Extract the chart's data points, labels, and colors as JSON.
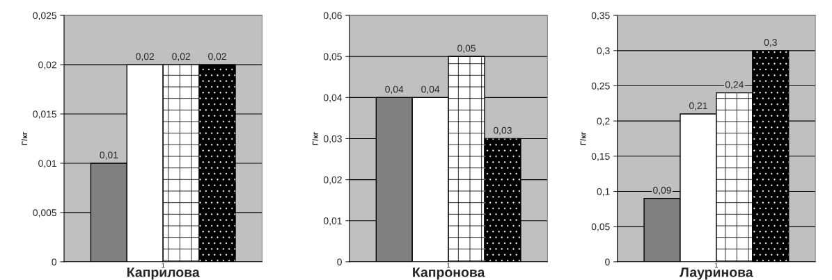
{
  "chart_data": [
    {
      "type": "bar",
      "categories": [
        "1"
      ],
      "xlabel": "Каприлова",
      "ylabel": "Г/кг",
      "ylim": [
        0,
        0.025
      ],
      "yticks": [
        {
          "value": 0,
          "label": "0"
        },
        {
          "value": 0.005,
          "label": "0,005"
        },
        {
          "value": 0.01,
          "label": "0,01"
        },
        {
          "value": 0.015,
          "label": "0,015"
        },
        {
          "value": 0.02,
          "label": "0,02"
        },
        {
          "value": 0.025,
          "label": "0,025"
        }
      ],
      "grid": "y",
      "series": [
        {
          "color": "#808080",
          "values": [
            0.01
          ],
          "value_labels": [
            "0,01"
          ]
        },
        {
          "color": "#ffffff",
          "values": [
            0.02
          ],
          "value_labels": [
            "0,02"
          ]
        },
        {
          "color": "#ffffff",
          "values": [
            0.02
          ],
          "value_labels": [
            "0,02"
          ]
        },
        {
          "color": "#000000",
          "values": [
            0.02
          ],
          "value_labels": [
            "0,02"
          ]
        }
      ]
    },
    {
      "type": "bar",
      "categories": [
        "1"
      ],
      "xlabel": "Капронова",
      "ylabel": "Г/кг",
      "ylim": [
        0,
        0.06
      ],
      "yticks": [
        {
          "value": 0,
          "label": "0"
        },
        {
          "value": 0.01,
          "label": "0,01"
        },
        {
          "value": 0.02,
          "label": "0,02"
        },
        {
          "value": 0.03,
          "label": "0,03"
        },
        {
          "value": 0.04,
          "label": "0,04"
        },
        {
          "value": 0.05,
          "label": "0,05"
        },
        {
          "value": 0.06,
          "label": "0,06"
        }
      ],
      "grid": "y",
      "series": [
        {
          "color": "#808080",
          "values": [
            0.04
          ],
          "value_labels": [
            "0,04"
          ]
        },
        {
          "color": "#ffffff",
          "values": [
            0.04
          ],
          "value_labels": [
            "0,04"
          ]
        },
        {
          "color": "#ffffff",
          "values": [
            0.05
          ],
          "value_labels": [
            "0,05"
          ]
        },
        {
          "color": "#000000",
          "values": [
            0.03
          ],
          "value_labels": [
            "0,03"
          ]
        }
      ]
    },
    {
      "type": "bar",
      "categories": [
        "1"
      ],
      "xlabel": "Лауринова",
      "ylabel": "Г/кг",
      "ylim": [
        0,
        0.35
      ],
      "yticks": [
        {
          "value": 0,
          "label": "0"
        },
        {
          "value": 0.05,
          "label": "0,05"
        },
        {
          "value": 0.1,
          "label": "0,1"
        },
        {
          "value": 0.15,
          "label": "0,15"
        },
        {
          "value": 0.2,
          "label": "0,2"
        },
        {
          "value": 0.25,
          "label": "0,25"
        },
        {
          "value": 0.3,
          "label": "0,3"
        },
        {
          "value": 0.35,
          "label": "0,35"
        }
      ],
      "grid": "y",
      "series": [
        {
          "color": "#808080",
          "values": [
            0.09
          ],
          "value_labels": [
            "0,09"
          ]
        },
        {
          "color": "#ffffff",
          "values": [
            0.21
          ],
          "value_labels": [
            "0,21"
          ]
        },
        {
          "color": "#ffffff",
          "values": [
            0.24
          ],
          "value_labels": [
            "0,24"
          ]
        },
        {
          "color": "#000000",
          "values": [
            0.3
          ],
          "value_labels": [
            "0,3"
          ]
        }
      ]
    }
  ]
}
